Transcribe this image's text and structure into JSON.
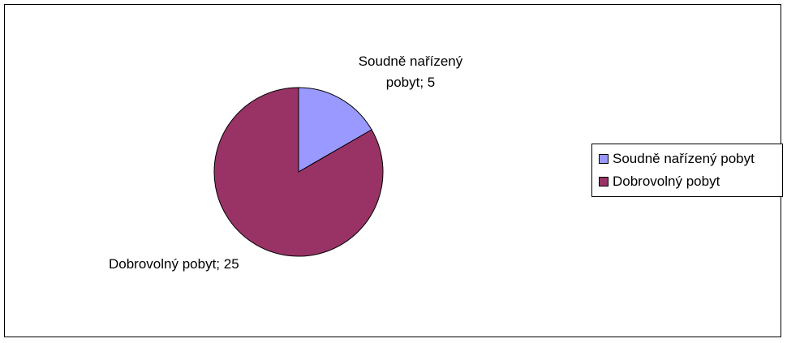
{
  "chart_data": {
    "type": "pie",
    "title": "",
    "categories": [
      "Soudně nařízený pobyt",
      "Dobrovolný pobyt"
    ],
    "values": [
      5,
      25
    ],
    "colors": [
      "#9999ff",
      "#993366"
    ],
    "data_labels": [
      "Soudně nařízený pobyt; 5",
      "Dobrovolný pobyt; 25"
    ],
    "legend_position": "right"
  },
  "labels": {
    "slice1_line1": "Soudně nařízený",
    "slice1_line2": "pobyt; 5",
    "slice2": "Dobrovolný pobyt; 25"
  },
  "legend": {
    "items": [
      "Soudně nařízený pobyt",
      "Dobrovolný pobyt"
    ]
  }
}
